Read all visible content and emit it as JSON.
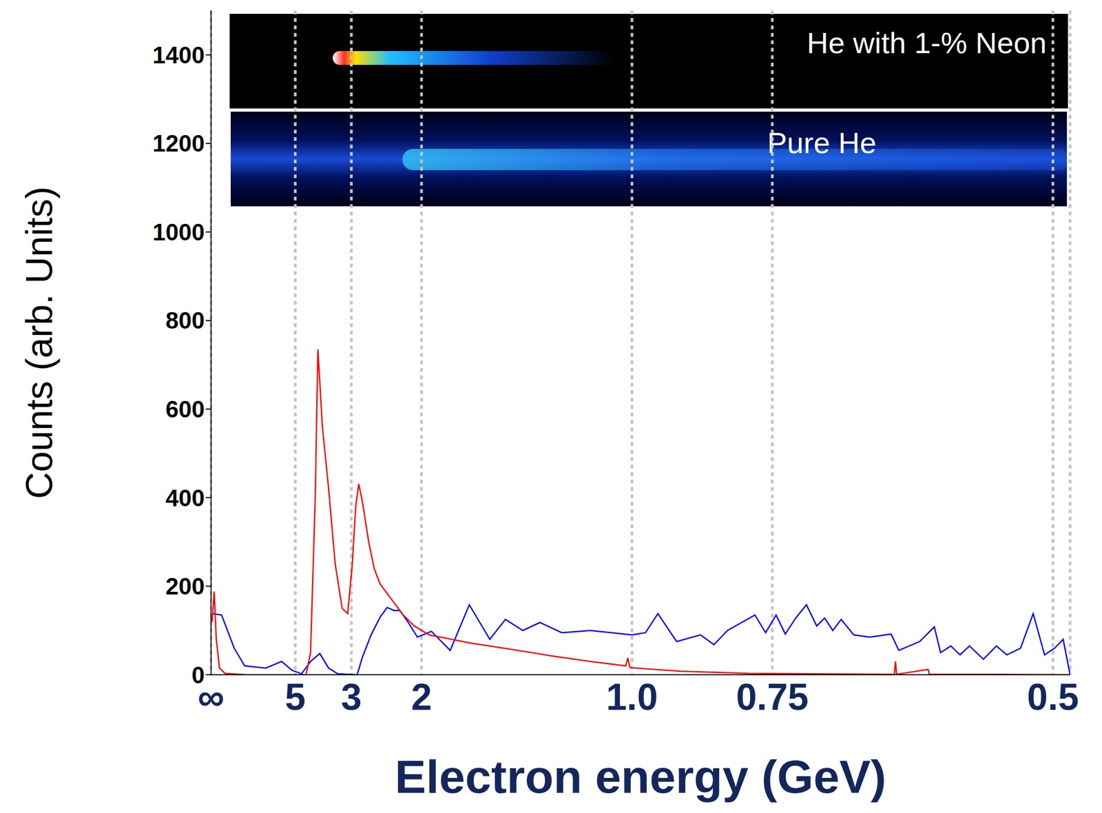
{
  "chart_data": {
    "type": "line",
    "x_label": "Electron energy (GeV)",
    "y_label": "Counts (arb. Units)",
    "xlim": [
      1000000000000,
      0.49
    ],
    "xticks": [
      {
        "value": 1000000000000,
        "label": "∞"
      },
      5,
      3,
      2,
      {
        "value": 1,
        "label": "1.0"
      },
      0.75,
      0.5
    ],
    "ylim": [
      0,
      1500
    ],
    "yticks": [
      0,
      200,
      400,
      600,
      800,
      1000,
      1200,
      1400
    ],
    "grid": true,
    "series": [
      {
        "name": "He with 1-% Neon",
        "color": "#ff0000",
        "x": [
          400,
          133,
          80,
          50,
          30,
          12,
          4.43,
          4.23,
          4.04,
          3.94,
          3.78,
          3.58,
          3.39,
          3.21,
          3.08,
          2.98,
          2.91,
          2.85,
          2.78,
          2.67,
          2.58,
          2.49,
          2.33,
          2.19,
          2.07,
          1.93,
          1.63,
          1.41,
          1.24,
          1.11,
          1.015,
          1.01,
          1.005,
          0.898,
          0.783,
          0.707,
          0.616,
          0.615,
          0.614,
          0.587,
          0.586,
          0.54,
          0.49
        ],
        "values": [
          120,
          188,
          80,
          15,
          3,
          0,
          0,
          50,
          400,
          735,
          560,
          420,
          250,
          150,
          138,
          250,
          380,
          431,
          390,
          300,
          240,
          205,
          170,
          135,
          110,
          90,
          72,
          58,
          43,
          30,
          20,
          38,
          16,
          8,
          3,
          2,
          1,
          30,
          1,
          12,
          1,
          1,
          0
        ]
      },
      {
        "name": "Pure He",
        "color": "#0000ff",
        "x": [
          400,
          40,
          18.2,
          12.5,
          7.7,
          5.97,
          5.19,
          4.65,
          4.23,
          3.87,
          3.58,
          3.32,
          2.88,
          2.78,
          2.63,
          2.49,
          2.39,
          2.3,
          2.23,
          2.14,
          2.04,
          1.91,
          1.76,
          1.63,
          1.51,
          1.43,
          1.35,
          1.28,
          1.2,
          1.11,
          1.0,
          0.969,
          0.942,
          0.904,
          0.86,
          0.837,
          0.815,
          0.774,
          0.759,
          0.745,
          0.733,
          0.72,
          0.707,
          0.695,
          0.686,
          0.677,
          0.668,
          0.655,
          0.639,
          0.619,
          0.612,
          0.594,
          0.582,
          0.577,
          0.569,
          0.562,
          0.555,
          0.545,
          0.536,
          0.529,
          0.52,
          0.512,
          0.505,
          0.499,
          0.494,
          0.49
        ],
        "values": [
          138,
          135,
          60,
          20,
          15,
          30,
          10,
          2,
          30,
          48,
          15,
          2,
          0,
          40,
          90,
          130,
          152,
          145,
          145,
          120,
          85,
          98,
          55,
          158,
          80,
          125,
          100,
          118,
          95,
          100,
          90,
          95,
          138,
          75,
          90,
          68,
          100,
          135,
          95,
          135,
          92,
          128,
          158,
          110,
          128,
          100,
          125,
          90,
          85,
          92,
          55,
          75,
          108,
          50,
          65,
          45,
          65,
          35,
          65,
          45,
          60,
          138,
          45,
          60,
          80,
          0
        ]
      }
    ]
  }
}
